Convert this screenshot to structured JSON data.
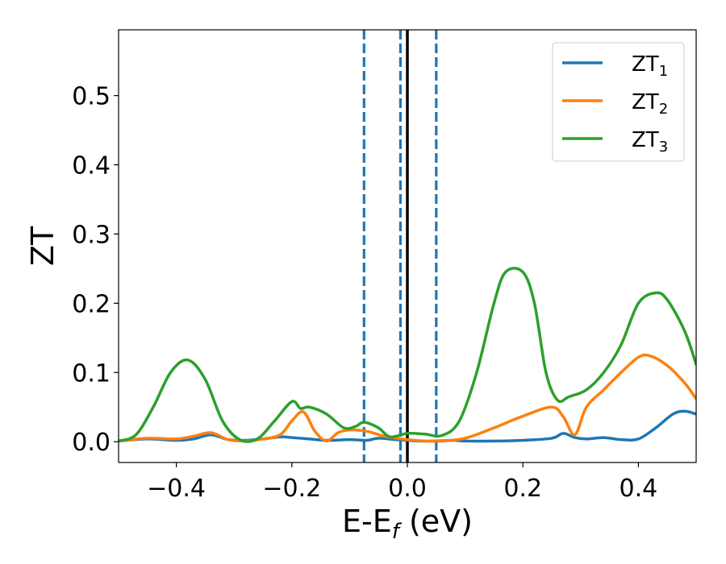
{
  "chart_data": {
    "type": "line",
    "xlabel": "E-E",
    "xlabel_sub": "f",
    "xlabel_unit": " (eV)",
    "ylabel": "ZT",
    "xlim": [
      -0.5,
      0.5
    ],
    "ylim": [
      -0.03,
      0.595
    ],
    "xticks": [
      -0.4,
      -0.2,
      0.0,
      0.2,
      0.4
    ],
    "xtick_labels": [
      "−0.4",
      "−0.2",
      "0.0",
      "0.2",
      "0.4"
    ],
    "yticks": [
      0.0,
      0.1,
      0.2,
      0.3,
      0.4,
      0.5
    ],
    "ytick_labels": [
      "0.0",
      "0.1",
      "0.2",
      "0.3",
      "0.4",
      "0.5"
    ],
    "grid": false,
    "legend_position": "top-right",
    "vlines": [
      {
        "x": -0.075,
        "style": "dashed",
        "color": "#1f77b4"
      },
      {
        "x": -0.012,
        "style": "dashed",
        "color": "#1f77b4"
      },
      {
        "x": 0.05,
        "style": "dashed",
        "color": "#1f77b4"
      },
      {
        "x": 0.0,
        "style": "solid",
        "color": "#000000"
      }
    ],
    "series": [
      {
        "name": "ZT",
        "name_sub": "1",
        "color": "#1f77b4",
        "x": [
          -0.5,
          -0.45,
          -0.4,
          -0.37,
          -0.34,
          -0.31,
          -0.28,
          -0.25,
          -0.22,
          -0.2,
          -0.17,
          -0.14,
          -0.1,
          -0.07,
          -0.05,
          -0.02,
          0.0,
          0.02,
          0.05,
          0.08,
          0.1,
          0.15,
          0.2,
          0.25,
          0.27,
          0.29,
          0.31,
          0.34,
          0.37,
          0.4,
          0.43,
          0.46,
          0.48,
          0.5
        ],
        "values": [
          0.001,
          0.004,
          0.002,
          0.004,
          0.01,
          0.003,
          0.002,
          0.004,
          0.007,
          0.006,
          0.004,
          0.002,
          0.003,
          0.002,
          0.005,
          0.003,
          0.002,
          0.001,
          0.001,
          0.002,
          0.001,
          0.001,
          0.002,
          0.005,
          0.012,
          0.006,
          0.004,
          0.006,
          0.003,
          0.004,
          0.02,
          0.04,
          0.044,
          0.04
        ]
      },
      {
        "name": "ZT",
        "name_sub": "2",
        "color": "#ff7f0e",
        "x": [
          -0.5,
          -0.45,
          -0.4,
          -0.37,
          -0.34,
          -0.31,
          -0.28,
          -0.25,
          -0.22,
          -0.2,
          -0.18,
          -0.16,
          -0.14,
          -0.12,
          -0.1,
          -0.07,
          -0.04,
          -0.01,
          0.0,
          0.03,
          0.06,
          0.1,
          0.15,
          0.2,
          0.25,
          0.27,
          0.29,
          0.31,
          0.34,
          0.37,
          0.4,
          0.42,
          0.45,
          0.48,
          0.5
        ],
        "values": [
          0.001,
          0.005,
          0.004,
          0.008,
          0.013,
          0.003,
          0.001,
          0.004,
          0.01,
          0.03,
          0.043,
          0.015,
          0.001,
          0.013,
          0.017,
          0.015,
          0.008,
          0.004,
          0.003,
          0.001,
          0.001,
          0.005,
          0.02,
          0.037,
          0.05,
          0.036,
          0.01,
          0.05,
          0.075,
          0.1,
          0.122,
          0.124,
          0.11,
          0.085,
          0.062
        ]
      },
      {
        "name": "ZT",
        "name_sub": "3",
        "color": "#2ca02c",
        "x": [
          -0.5,
          -0.47,
          -0.44,
          -0.41,
          -0.38,
          -0.35,
          -0.32,
          -0.29,
          -0.26,
          -0.23,
          -0.2,
          -0.185,
          -0.17,
          -0.14,
          -0.11,
          -0.09,
          -0.075,
          -0.05,
          -0.03,
          0.0,
          0.03,
          0.06,
          0.09,
          0.12,
          0.15,
          0.17,
          0.2,
          0.22,
          0.24,
          0.26,
          0.28,
          0.31,
          0.34,
          0.37,
          0.4,
          0.43,
          0.45,
          0.48,
          0.5
        ],
        "values": [
          0.001,
          0.01,
          0.05,
          0.1,
          0.118,
          0.09,
          0.03,
          0.003,
          0.004,
          0.03,
          0.058,
          0.048,
          0.05,
          0.04,
          0.02,
          0.022,
          0.028,
          0.02,
          0.007,
          0.012,
          0.011,
          0.009,
          0.03,
          0.1,
          0.2,
          0.245,
          0.245,
          0.2,
          0.1,
          0.06,
          0.065,
          0.075,
          0.1,
          0.14,
          0.2,
          0.215,
          0.205,
          0.16,
          0.112
        ]
      }
    ]
  }
}
